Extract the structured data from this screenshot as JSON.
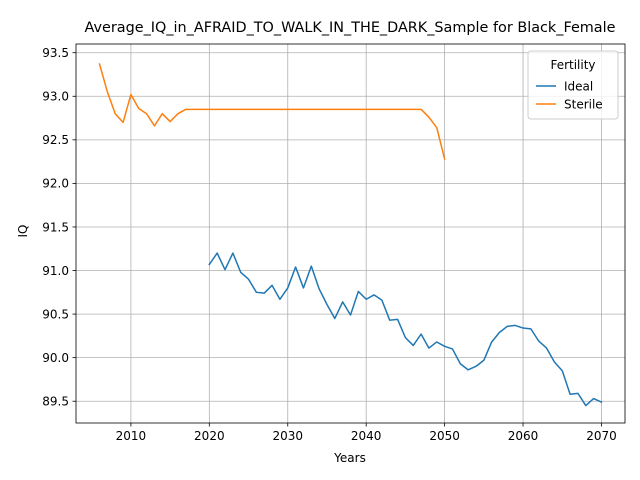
{
  "chart_data": {
    "type": "line",
    "title": "Average_IQ_in_AFRAID_TO_WALK_IN_THE_DARK_Sample for Black_Female",
    "xlabel": "Years",
    "ylabel": "IQ",
    "xlim": [
      2003,
      2073
    ],
    "ylim": [
      89.25,
      93.6
    ],
    "xticks": [
      2010,
      2020,
      2030,
      2040,
      2050,
      2060,
      2070
    ],
    "xtick_labels": [
      "2010",
      "2020",
      "2030",
      "2040",
      "2050",
      "2060",
      "2070"
    ],
    "yticks": [
      89.5,
      90.0,
      90.5,
      91.0,
      91.5,
      92.0,
      92.5,
      93.0,
      93.5
    ],
    "ytick_labels": [
      "89.5",
      "90.0",
      "90.5",
      "91.0",
      "91.5",
      "92.0",
      "92.5",
      "93.0",
      "93.5"
    ],
    "grid": true,
    "legend": {
      "title": "Fertility",
      "position": "upper-right"
    },
    "series": [
      {
        "name": "Ideal",
        "color": "#1f77b4",
        "x": [
          2020,
          2021,
          2022,
          2023,
          2024,
          2025,
          2026,
          2027,
          2028,
          2029,
          2030,
          2031,
          2032,
          2033,
          2034,
          2035,
          2036,
          2037,
          2038,
          2039,
          2040,
          2041,
          2042,
          2043,
          2044,
          2045,
          2046,
          2047,
          2048,
          2049,
          2050,
          2051,
          2052,
          2053,
          2054,
          2055,
          2056,
          2057,
          2058,
          2059,
          2060,
          2061,
          2062,
          2063,
          2064,
          2065,
          2066,
          2067,
          2068,
          2069,
          2070
        ],
        "y": [
          91.07,
          91.2,
          91.01,
          91.2,
          90.98,
          90.9,
          90.75,
          90.74,
          90.83,
          90.67,
          90.8,
          91.04,
          90.8,
          91.05,
          90.79,
          90.61,
          90.45,
          90.64,
          90.49,
          90.76,
          90.67,
          90.72,
          90.66,
          90.43,
          90.44,
          90.23,
          90.14,
          90.27,
          90.11,
          90.18,
          90.13,
          90.1,
          89.93,
          89.86,
          89.9,
          89.97,
          90.18,
          90.29,
          90.36,
          90.37,
          90.34,
          90.33,
          90.19,
          90.11,
          89.95,
          89.85,
          89.58,
          89.59,
          89.45,
          89.53,
          89.49
        ]
      },
      {
        "name": "Sterile",
        "color": "#ff7f0e",
        "x": [
          2006,
          2007,
          2008,
          2009,
          2010,
          2011,
          2012,
          2013,
          2014,
          2015,
          2016,
          2017,
          2018,
          2019,
          2020,
          2021,
          2022,
          2023,
          2024,
          2025,
          2026,
          2027,
          2028,
          2029,
          2030,
          2031,
          2032,
          2033,
          2034,
          2035,
          2036,
          2037,
          2038,
          2039,
          2040,
          2041,
          2042,
          2043,
          2044,
          2045,
          2046,
          2047,
          2048,
          2049,
          2050
        ],
        "y": [
          93.37,
          93.05,
          92.8,
          92.7,
          93.02,
          92.86,
          92.8,
          92.66,
          92.8,
          92.71,
          92.8,
          92.85,
          92.85,
          92.85,
          92.85,
          92.85,
          92.85,
          92.85,
          92.85,
          92.85,
          92.85,
          92.85,
          92.85,
          92.85,
          92.85,
          92.85,
          92.85,
          92.85,
          92.85,
          92.85,
          92.85,
          92.85,
          92.85,
          92.85,
          92.85,
          92.85,
          92.85,
          92.85,
          92.85,
          92.85,
          92.85,
          92.85,
          92.76,
          92.64,
          92.28
        ]
      }
    ]
  }
}
